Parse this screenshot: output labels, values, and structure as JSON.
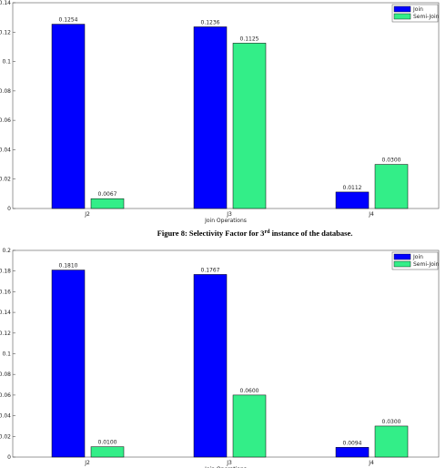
{
  "chart_data": [
    {
      "type": "bar",
      "categories": [
        "J2",
        "J3",
        "J4"
      ],
      "x_label": "Join Operations",
      "series": [
        {
          "name": "Join",
          "color": "#0000ff",
          "values": [
            0.1254,
            0.1236,
            0.0112
          ],
          "value_labels": [
            "0.1254",
            "0.1236",
            "0.0112"
          ]
        },
        {
          "name": "Semi-Join",
          "color": "#33ee88",
          "values": [
            0.0067,
            0.1125,
            0.03
          ],
          "value_labels": [
            "0.0067",
            "0.1125",
            "0.0300"
          ]
        }
      ],
      "ylim": [
        0,
        0.14
      ],
      "yticks": [
        0,
        0.02,
        0.04,
        0.06,
        0.08,
        0.1,
        0.12,
        0.14
      ],
      "legend": "upper right"
    },
    {
      "type": "bar",
      "categories": [
        "J2",
        "J3",
        "J4"
      ],
      "x_label": "Join Operations",
      "series": [
        {
          "name": "Join",
          "color": "#0000ff",
          "values": [
            0.181,
            0.1767,
            0.0094
          ],
          "value_labels": [
            "0.1810",
            "0.1767",
            "0.0094"
          ]
        },
        {
          "name": "Semi-Join",
          "color": "#33ee88",
          "values": [
            0.01,
            0.06,
            0.03
          ],
          "value_labels": [
            "0.0100",
            "0.0600",
            "0.0300"
          ]
        }
      ],
      "ylim": [
        0,
        0.2
      ],
      "yticks": [
        0,
        0.02,
        0.04,
        0.06,
        0.08,
        0.1,
        0.12,
        0.14,
        0.16,
        0.18,
        0.2
      ],
      "legend": "upper right"
    }
  ],
  "caption": {
    "before": "Figure 8: Selectivity Factor for 3",
    "superscript": "rd",
    "after": " instance of the database."
  }
}
